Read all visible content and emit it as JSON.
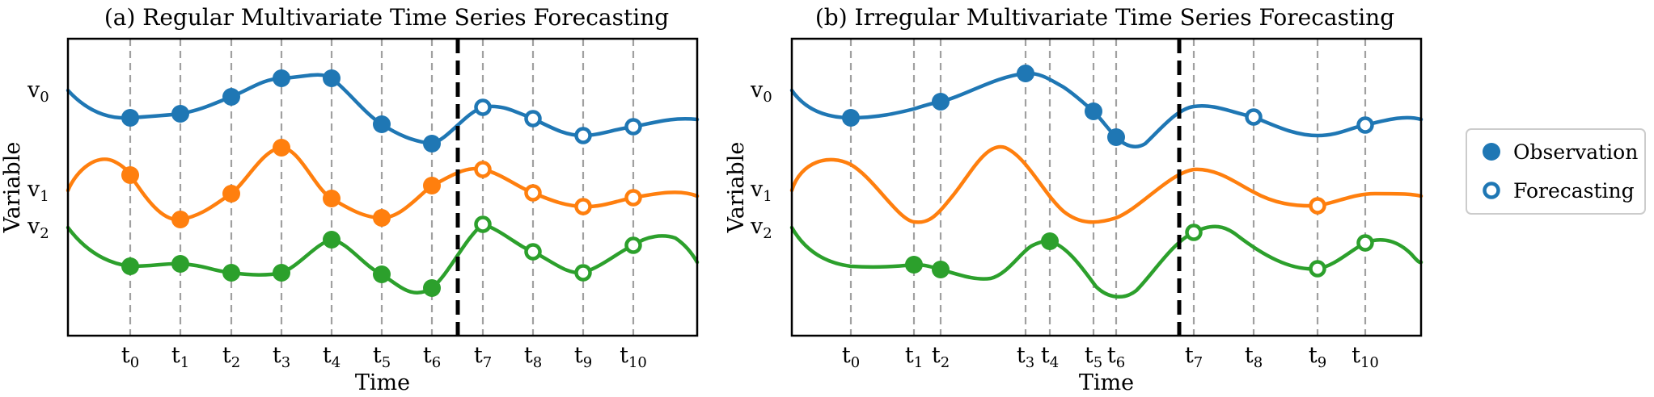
{
  "colors": {
    "v0": "#1f77b4",
    "v1": "#ff7f0e",
    "v2": "#2ca02c"
  },
  "legend": {
    "observation": "Observation",
    "forecasting": "Forecasting"
  },
  "panels": [
    {
      "title": "(a) Regular Multivariate Time Series Forecasting",
      "xlabel": "Time",
      "ylabel": "Variable",
      "var_labels": [
        {
          "base": "v",
          "sub": "0"
        },
        {
          "base": "v",
          "sub": "1"
        },
        {
          "base": "v",
          "sub": "2"
        }
      ],
      "time_labels": [
        {
          "base": "t",
          "sub": "0"
        },
        {
          "base": "t",
          "sub": "1"
        },
        {
          "base": "t",
          "sub": "2"
        },
        {
          "base": "t",
          "sub": "3"
        },
        {
          "base": "t",
          "sub": "4"
        },
        {
          "base": "t",
          "sub": "5"
        },
        {
          "base": "t",
          "sub": "6"
        },
        {
          "base": "t",
          "sub": "7"
        },
        {
          "base": "t",
          "sub": "8"
        },
        {
          "base": "t",
          "sub": "9"
        },
        {
          "base": "t",
          "sub": "10"
        }
      ],
      "separator_after": "t6"
    },
    {
      "title": "(b) Irregular Multivariate Time Series Forecasting",
      "xlabel": "Time",
      "ylabel": "Variable",
      "var_labels": [
        {
          "base": "v",
          "sub": "0"
        },
        {
          "base": "v",
          "sub": "1"
        },
        {
          "base": "v",
          "sub": "2"
        }
      ],
      "time_labels": [
        {
          "base": "t",
          "sub": "0"
        },
        {
          "base": "t",
          "sub": "1"
        },
        {
          "base": "t",
          "sub": "2"
        },
        {
          "base": "t",
          "sub": "3"
        },
        {
          "base": "t",
          "sub": "4"
        },
        {
          "base": "t",
          "sub": "5"
        },
        {
          "base": "t",
          "sub": "6"
        },
        {
          "base": "t",
          "sub": "7"
        },
        {
          "base": "t",
          "sub": "8"
        },
        {
          "base": "t",
          "sub": "9"
        },
        {
          "base": "t",
          "sub": "10"
        }
      ],
      "separator_after": "t6"
    }
  ]
}
